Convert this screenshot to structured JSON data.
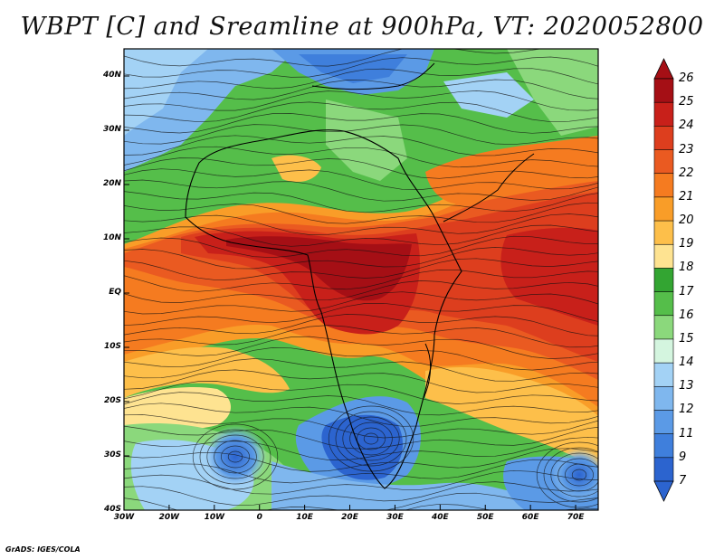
{
  "title": "WBPT [C] and Sreamline at 900hPa, VT: 2020052800",
  "credit": "GrADS: IGES/COLA",
  "map": {
    "lon_range": [
      -30,
      75
    ],
    "lat_range": [
      -40,
      45
    ],
    "lat_ticks": [
      {
        "value": 40,
        "label": "40N"
      },
      {
        "value": 30,
        "label": "30N"
      },
      {
        "value": 20,
        "label": "20N"
      },
      {
        "value": 10,
        "label": "10N"
      },
      {
        "value": 0,
        "label": "EQ"
      },
      {
        "value": -10,
        "label": "10S"
      },
      {
        "value": -20,
        "label": "20S"
      },
      {
        "value": -30,
        "label": "30S"
      },
      {
        "value": -40,
        "label": "40S"
      }
    ],
    "lon_ticks": [
      {
        "value": -30,
        "label": "30W"
      },
      {
        "value": -20,
        "label": "20W"
      },
      {
        "value": -10,
        "label": "10W"
      },
      {
        "value": 0,
        "label": "0"
      },
      {
        "value": 10,
        "label": "10E"
      },
      {
        "value": 20,
        "label": "20E"
      },
      {
        "value": 30,
        "label": "30E"
      },
      {
        "value": 40,
        "label": "40E"
      },
      {
        "value": 50,
        "label": "50E"
      },
      {
        "value": 60,
        "label": "60E"
      },
      {
        "value": 70,
        "label": "70E"
      }
    ]
  },
  "colorbar": {
    "labels": [
      "26",
      "25",
      "24",
      "23",
      "22",
      "21",
      "20",
      "19",
      "18",
      "17",
      "16",
      "15",
      "14",
      "13",
      "12",
      "11",
      "9",
      "7"
    ],
    "colors": [
      "#a50f15",
      "#c8201a",
      "#dd3e1e",
      "#ea5a21",
      "#f57b20",
      "#f99d28",
      "#fdbf4a",
      "#fee391",
      "#33a532",
      "#55be4a",
      "#8bd87c",
      "#d4f5df",
      "#a3d2f5",
      "#7fb7ee",
      "#5b9ae6",
      "#3f7fdc",
      "#2c64cf"
    ]
  }
}
